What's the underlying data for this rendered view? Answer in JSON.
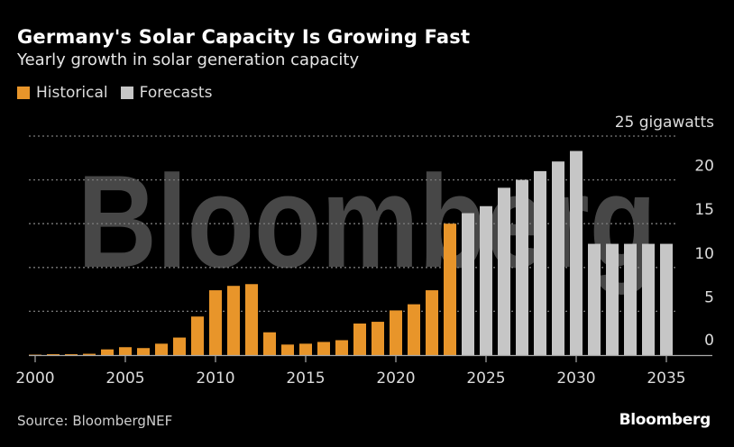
{
  "header": {
    "title": "Germany's Solar Capacity Is Growing Fast",
    "subtitle": "Yearly growth in solar generation capacity"
  },
  "legend": [
    {
      "label": "Historical",
      "color": "#e8952a"
    },
    {
      "label": "Forecasts",
      "color": "#c6c6c6"
    }
  ],
  "footer": {
    "source": "Source: BloombergNEF",
    "brand": "Bloomberg"
  },
  "watermark": "Bloomberg",
  "colors": {
    "historical": "#e8952a",
    "forecast": "#c6c6c6",
    "grid": "#7a7a7a",
    "watermark": "#474747",
    "axis": "#a9a9a9",
    "tick_text": "#dcdcdc"
  },
  "chart_data": {
    "type": "bar",
    "title": "Germany's Solar Capacity Is Growing Fast",
    "subtitle": "Yearly growth in solar generation capacity",
    "xlabel": "",
    "ylabel": "gigawatts",
    "y_unit_label": "25 gigawatts",
    "ylim": [
      0,
      25
    ],
    "yticks": [
      0,
      5,
      10,
      15,
      20,
      25
    ],
    "ytick_labels": [
      "0",
      "5",
      "10",
      "15",
      "20",
      "25 gigawatts"
    ],
    "xticks": [
      2000,
      2005,
      2010,
      2015,
      2020,
      2025,
      2030,
      2035
    ],
    "xtick_labels": [
      "2000",
      "2005",
      "2010",
      "2015",
      "2020",
      "2025",
      "2030",
      "2035"
    ],
    "grid": true,
    "legend_position": "top-left",
    "categories": [
      2000,
      2001,
      2002,
      2003,
      2004,
      2005,
      2006,
      2007,
      2008,
      2009,
      2010,
      2011,
      2012,
      2013,
      2014,
      2015,
      2016,
      2017,
      2018,
      2019,
      2020,
      2021,
      2022,
      2023,
      2024,
      2025,
      2026,
      2027,
      2028,
      2029,
      2030,
      2031,
      2032,
      2033,
      2034,
      2035
    ],
    "series": [
      {
        "name": "Historical",
        "years": [
          2000,
          2001,
          2002,
          2003,
          2004,
          2005,
          2006,
          2007,
          2008,
          2009,
          2010,
          2011,
          2012,
          2013,
          2014,
          2015,
          2016,
          2017,
          2018,
          2019,
          2020,
          2021,
          2022,
          2023
        ],
        "values": [
          0.05,
          0.1,
          0.1,
          0.15,
          0.65,
          0.9,
          0.8,
          1.3,
          2.0,
          4.4,
          7.4,
          7.9,
          8.1,
          2.6,
          1.2,
          1.3,
          1.5,
          1.7,
          3.6,
          3.8,
          5.1,
          5.8,
          7.4,
          15.0
        ]
      },
      {
        "name": "Forecasts",
        "years": [
          2024,
          2025,
          2026,
          2027,
          2028,
          2029,
          2030,
          2031,
          2032,
          2033,
          2034,
          2035
        ],
        "values": [
          16.2,
          17.0,
          19.1,
          20.0,
          21.0,
          22.1,
          23.3,
          12.7,
          12.7,
          12.7,
          12.7,
          12.7
        ]
      }
    ]
  }
}
